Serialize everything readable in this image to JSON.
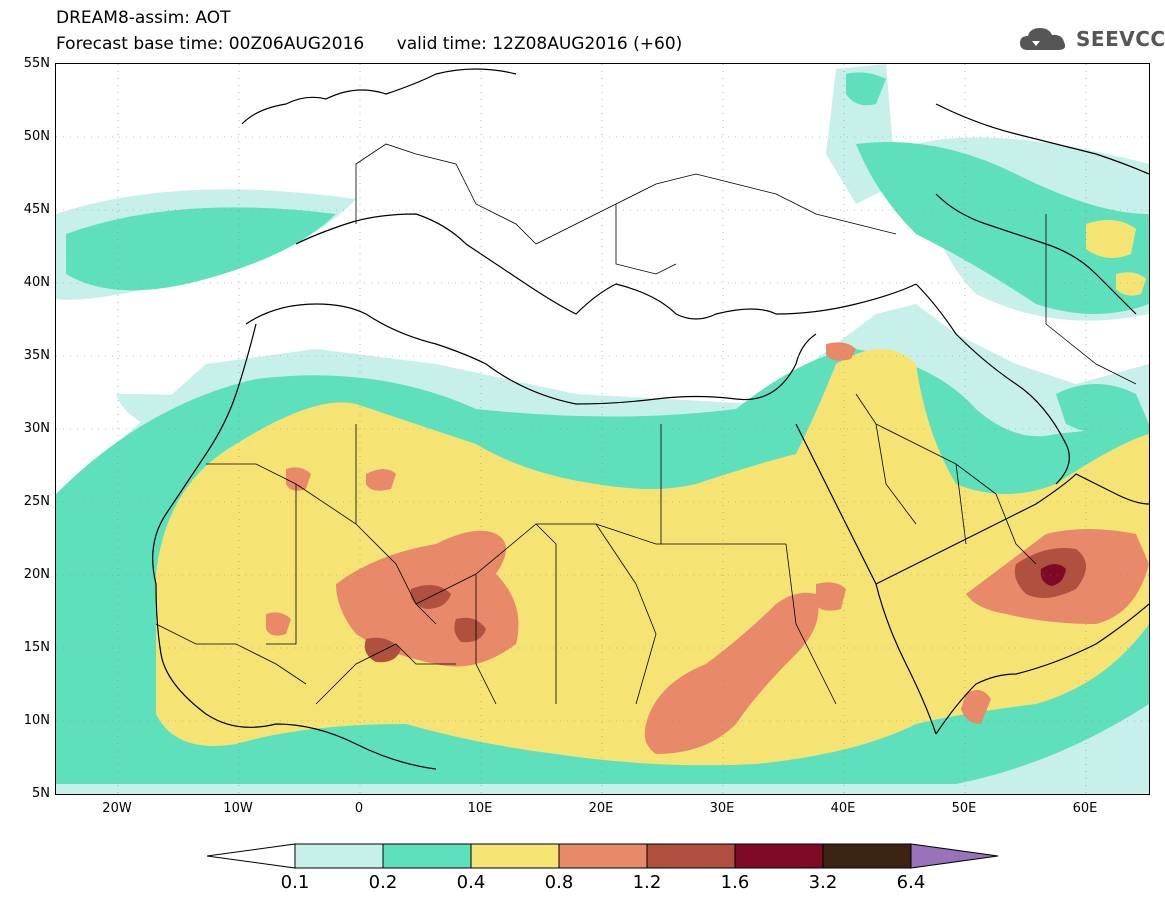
{
  "header": {
    "title_line1": "DREAM8-assim: AOT",
    "title_line2": "Forecast base time: 00Z06AUG2016      valid time: 12Z08AUG2016 (+60)",
    "logo_text": "SEEVCCC"
  },
  "axes": {
    "lat_labels": [
      "55N",
      "50N",
      "45N",
      "40N",
      "35N",
      "30N",
      "25N",
      "20N",
      "15N",
      "10N",
      "5N"
    ],
    "lon_labels": [
      "20W",
      "10W",
      "0",
      "10E",
      "20E",
      "30E",
      "40E",
      "50E",
      "60E"
    ]
  },
  "colorbar": {
    "labels": [
      "0.1",
      "0.2",
      "0.4",
      "0.8",
      "1.2",
      "1.6",
      "3.2",
      "6.4"
    ],
    "colors": [
      "#c8f0ea",
      "#5fe0bd",
      "#f5e474",
      "#e8896a",
      "#b0503f",
      "#7e0a26",
      "#3b2412",
      "#9a72bb"
    ]
  }
}
